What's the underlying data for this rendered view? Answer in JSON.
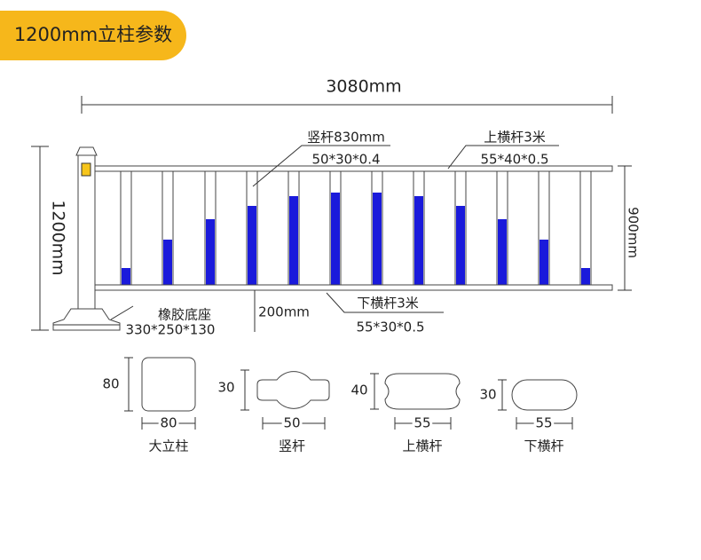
{
  "header": {
    "title": "1200mm立柱参数"
  },
  "dimensions": {
    "total_length": "3080mm",
    "post_height": "1200mm",
    "fence_height": "900mm",
    "ground_gap": "200mm"
  },
  "labels": {
    "vertical_bar": {
      "name": "竖杆830mm",
      "spec": "50*30*0.4"
    },
    "top_rail": {
      "name": "上横杆3米",
      "spec": "55*40*0.5"
    },
    "bottom_rail": {
      "name": "下横杆3米",
      "spec": "55*30*0.5"
    },
    "base": {
      "name": "橡胶底座",
      "spec": "330*250*130"
    }
  },
  "sections": [
    {
      "height": "80",
      "width": "80",
      "name": "大立柱"
    },
    {
      "height": "30",
      "width": "50",
      "name": "竖杆"
    },
    {
      "height": "40",
      "width": "55",
      "name": "上横杆"
    },
    {
      "height": "30",
      "width": "55",
      "name": "下横杆"
    }
  ]
}
